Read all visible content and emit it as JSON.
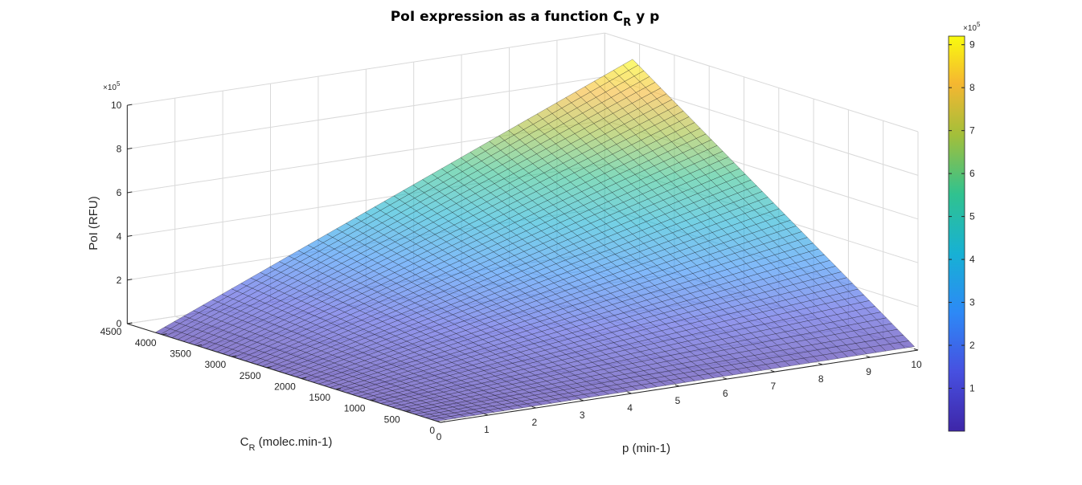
{
  "chart_data": {
    "type": "surface",
    "title": "PoI expression as a function C",
    "title_subscript": "R",
    "title_suffix": " y p",
    "xlabel": "p (min-1)",
    "ylabel_main": "C",
    "ylabel_sub": "R",
    "ylabel_rest": " (molec.min-1)",
    "zlabel": "PoI (RFU)",
    "z_multiplier_base": "×10",
    "z_multiplier_exp": "5",
    "colorbar_multiplier_base": "×10",
    "colorbar_multiplier_exp": "5",
    "xlim": [
      0,
      10
    ],
    "ylim": [
      0,
      4500
    ],
    "zlim": [
      0,
      1000000
    ],
    "x_ticks": [
      "0",
      "1",
      "2",
      "3",
      "4",
      "5",
      "6",
      "7",
      "8",
      "9",
      "10"
    ],
    "y_ticks": [
      "0",
      "500",
      "1000",
      "1500",
      "2000",
      "2500",
      "3000",
      "3500",
      "4000",
      "4500"
    ],
    "z_ticks": [
      "0",
      "2",
      "4",
      "6",
      "8",
      "10"
    ],
    "colorbar_ticks": [
      "1",
      "2",
      "3",
      "4",
      "5",
      "6",
      "7",
      "8",
      "9"
    ],
    "colorbar_range": [
      0,
      920000
    ],
    "colormap": "parula",
    "face_alpha": 0.6,
    "grid": "on",
    "surface": {
      "p_range": [
        0,
        10
      ],
      "CR_range": [
        50,
        4100
      ],
      "z_at_corners": {
        "p0_CR50": 0,
        "p10_CR50": 20000,
        "p0_CR4100": 0,
        "p10_CR4100": 920000
      },
      "relationship": "z proportional to p * C_R",
      "mesh_divisions": 50
    }
  }
}
